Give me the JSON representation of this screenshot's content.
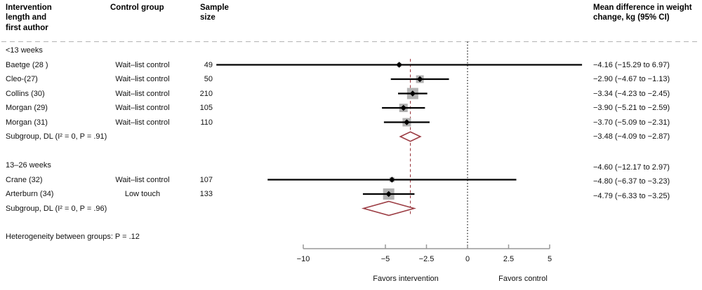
{
  "chart_data": {
    "type": "forest",
    "columns": {
      "study": "Intervention length and first author",
      "control": "Control group",
      "n": "Sample size",
      "ci": "Mean difference in weight change, kg (95% CI)"
    },
    "xlim": [
      -10,
      5
    ],
    "ticks": [
      {
        "v": -10,
        "label": "−10"
      },
      {
        "v": -5,
        "label": "−5"
      },
      {
        "v": -2.5,
        "label": "−2.5"
      },
      {
        "v": 0,
        "label": "0"
      },
      {
        "v": 2.5,
        "label": "2.5"
      },
      {
        "v": 5,
        "label": "5"
      }
    ],
    "zero_line": 0,
    "overall_line": -3.48,
    "favors_left": "Favors intervention",
    "favors_right": "Favors control",
    "footnote": "Heterogeneity between groups: P = .12",
    "colors": {
      "summary": "#9c3d44",
      "square": "#b3b3b3",
      "ci_line": "#000000",
      "axis": "#999999",
      "separator": "#b3b3b3"
    },
    "groups": [
      {
        "label": "<13 weeks",
        "studies": [
          {
            "study": "Baetge (28 )",
            "control": "Wait–list control",
            "n": 49,
            "est": -4.16,
            "lo": -15.29,
            "hi": 6.97,
            "ci_text": "−4.16 (−15.29 to 6.97)",
            "rel_weight": 6
          },
          {
            "study": "Cleo-(27)",
            "control": "Wait–list control",
            "n": 50,
            "est": -2.9,
            "lo": -4.67,
            "hi": -1.13,
            "ci_text": "−2.90 (−4.67 to −1.13)",
            "rel_weight": 11
          },
          {
            "study": "Collins (30)",
            "control": "Wait–list control",
            "n": 210,
            "est": -3.34,
            "lo": -4.23,
            "hi": -2.45,
            "ci_text": "−3.34 (−4.23 to −2.45)",
            "rel_weight": 16
          },
          {
            "study": "Morgan (29)",
            "control": "Wait–list control",
            "n": 105,
            "est": -3.9,
            "lo": -5.21,
            "hi": -2.59,
            "ci_text": "−3.90 (−5.21 to −2.59)",
            "rel_weight": 12
          },
          {
            "study": "Morgan (31)",
            "control": "Wait–list control",
            "n": 110,
            "est": -3.7,
            "lo": -5.09,
            "hi": -2.31,
            "ci_text": "−3.70 (−5.09 to −2.31)",
            "rel_weight": 12
          }
        ],
        "subgroup": {
          "label": "Subgroup, DL (I² = 0, P = .91)",
          "est": -3.48,
          "lo": -4.09,
          "hi": -2.87,
          "ci_text": "−3.48 (−4.09 to −2.87)"
        }
      },
      {
        "label": "13–26 weeks",
        "studies": [
          {
            "study": "Crane (32)",
            "control": "Wait–list control",
            "n": 107,
            "est": -4.6,
            "lo": -12.17,
            "hi": 2.97,
            "ci_text": "−4.60 (−12.17 to 2.97)",
            "rel_weight": 7
          },
          {
            "study": "Arterburn (34)",
            "control": "Low touch",
            "n": 133,
            "est": -4.8,
            "lo": -6.37,
            "hi": -3.23,
            "ci_text": "−4.80 (−6.37 to −3.23)",
            "rel_weight": 16
          }
        ],
        "subgroup": {
          "label": "Subgroup, DL (I² = 0, P = .96)",
          "est": -4.79,
          "lo": -6.33,
          "hi": -3.25,
          "ci_text": "−4.79 (−6.33 to −3.25)"
        }
      }
    ]
  }
}
